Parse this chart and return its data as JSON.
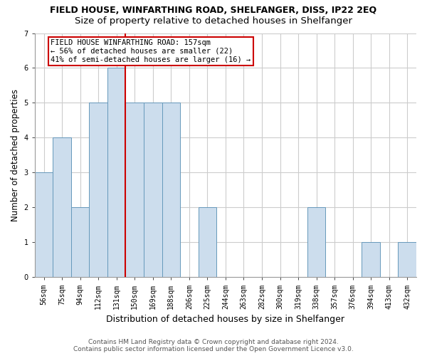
{
  "title": "FIELD HOUSE, WINFARTHING ROAD, SHELFANGER, DISS, IP22 2EQ",
  "subtitle": "Size of property relative to detached houses in Shelfanger",
  "xlabel": "Distribution of detached houses by size in Shelfanger",
  "ylabel": "Number of detached properties",
  "categories": [
    "56sqm",
    "75sqm",
    "94sqm",
    "112sqm",
    "131sqm",
    "150sqm",
    "169sqm",
    "188sqm",
    "206sqm",
    "225sqm",
    "244sqm",
    "263sqm",
    "282sqm",
    "300sqm",
    "319sqm",
    "338sqm",
    "357sqm",
    "376sqm",
    "394sqm",
    "413sqm",
    "432sqm"
  ],
  "values": [
    3,
    4,
    2,
    5,
    6,
    5,
    5,
    5,
    0,
    2,
    0,
    0,
    0,
    0,
    0,
    2,
    0,
    0,
    1,
    0,
    1
  ],
  "bar_color": "#ccdded",
  "bar_edge_color": "#6699bb",
  "red_line_color": "#cc0000",
  "red_line_x": 4.5,
  "annotation_text": "FIELD HOUSE WINFARTHING ROAD: 157sqm\n← 56% of detached houses are smaller (22)\n41% of semi-detached houses are larger (16) →",
  "annotation_box_facecolor": "#ffffff",
  "annotation_box_edgecolor": "#cc0000",
  "ylim": [
    0,
    7
  ],
  "yticks": [
    0,
    1,
    2,
    3,
    4,
    5,
    6,
    7
  ],
  "fig_bg": "#ffffff",
  "plot_bg": "#ffffff",
  "grid_color": "#cccccc",
  "title_fontsize": 9,
  "subtitle_fontsize": 9.5,
  "xlabel_fontsize": 9,
  "ylabel_fontsize": 8.5,
  "tick_fontsize": 7,
  "annotation_fontsize": 7.5,
  "footer_fontsize": 6.5,
  "footer_line1": "Contains HM Land Registry data © Crown copyright and database right 2024.",
  "footer_line2": "Contains public sector information licensed under the Open Government Licence v3.0."
}
